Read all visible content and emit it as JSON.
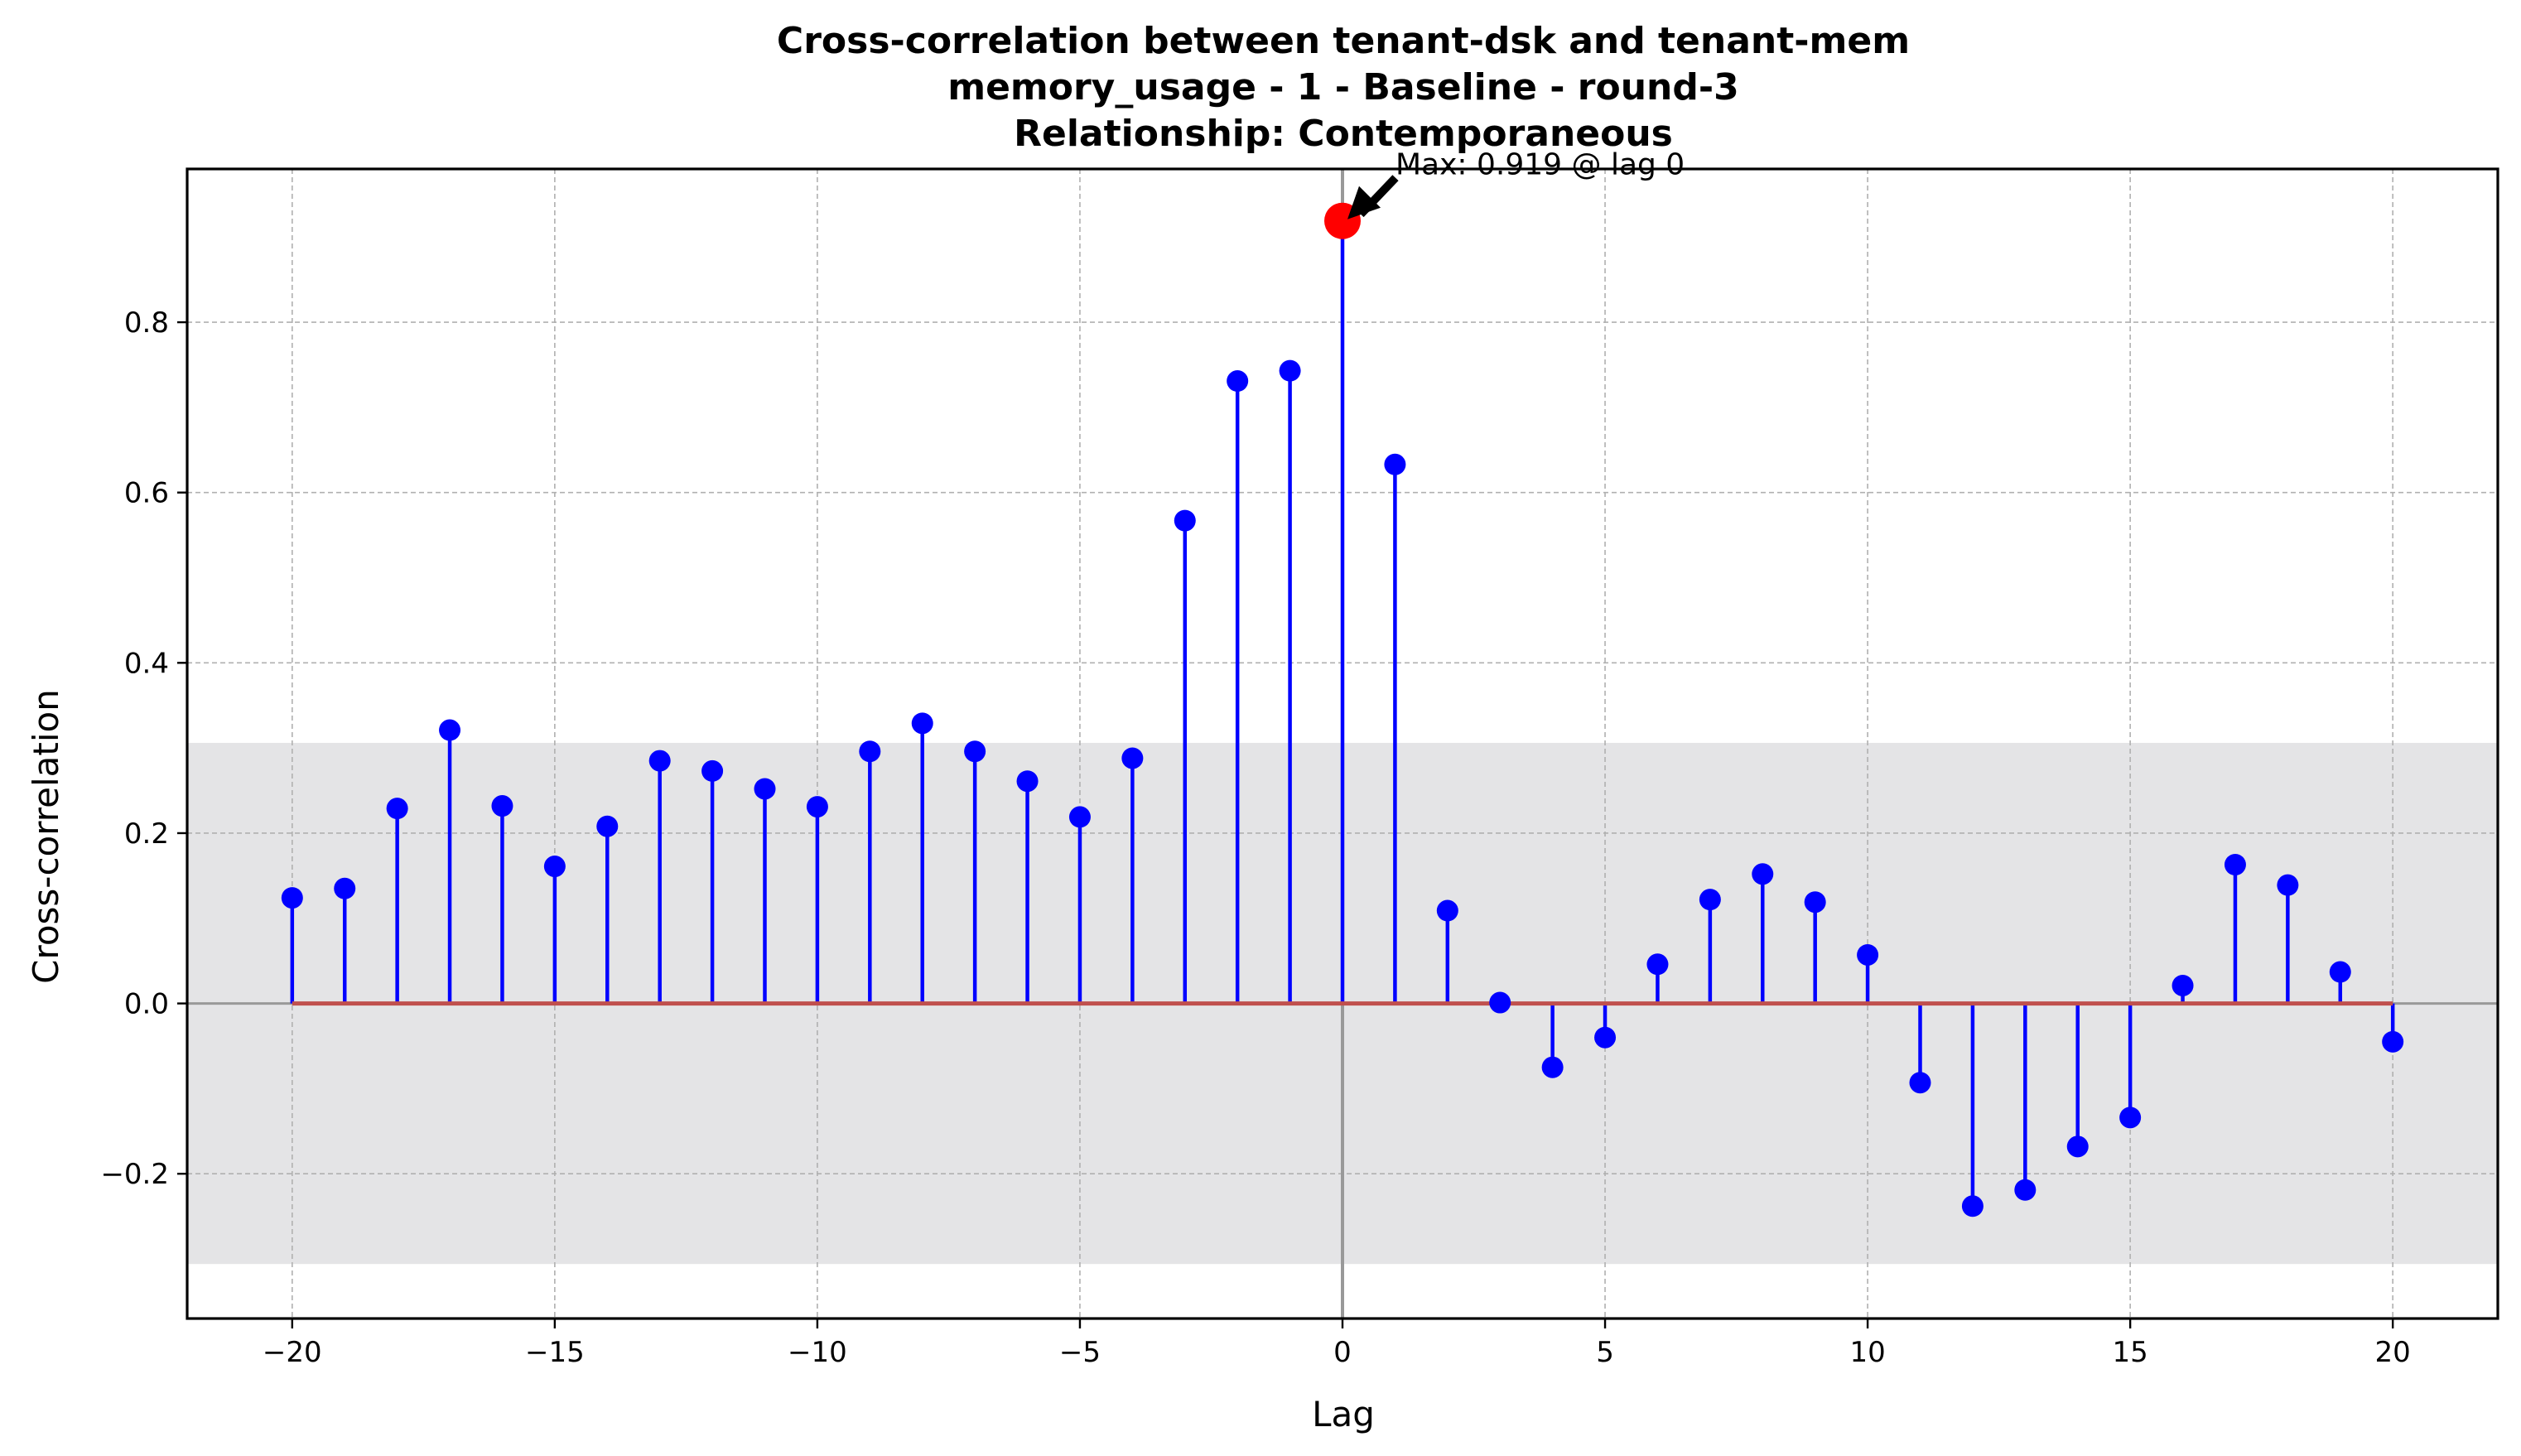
{
  "chart_data": {
    "type": "stem",
    "title_lines": [
      "Cross-correlation between tenant-dsk and tenant-mem",
      "memory_usage - 1 - Baseline - round-3",
      "Relationship: Contemporaneous"
    ],
    "xlabel": "Lag",
    "ylabel": "Cross-correlation",
    "xlim": [
      -22,
      22
    ],
    "ylim": [
      -0.37,
      0.98
    ],
    "xticks": [
      -20,
      -15,
      -10,
      -5,
      0,
      5,
      10,
      15,
      20
    ],
    "yticks": [
      -0.2,
      0.0,
      0.2,
      0.4,
      0.6,
      0.8
    ],
    "grid": true,
    "confidence_band": [
      -0.306,
      0.306
    ],
    "x": [
      -20,
      -19,
      -18,
      -17,
      -16,
      -15,
      -14,
      -13,
      -12,
      -11,
      -10,
      -9,
      -8,
      -7,
      -6,
      -5,
      -4,
      -3,
      -2,
      -1,
      0,
      1,
      2,
      3,
      4,
      5,
      6,
      7,
      8,
      9,
      10,
      11,
      12,
      13,
      14,
      15,
      16,
      17,
      18,
      19,
      20
    ],
    "values": [
      0.124,
      0.135,
      0.229,
      0.321,
      0.232,
      0.161,
      0.208,
      0.285,
      0.273,
      0.252,
      0.231,
      0.296,
      0.329,
      0.296,
      0.261,
      0.219,
      0.288,
      0.567,
      0.731,
      0.743,
      0.919,
      0.633,
      0.109,
      0.001,
      -0.075,
      -0.04,
      0.046,
      0.122,
      0.152,
      0.119,
      0.057,
      -0.093,
      -0.238,
      -0.219,
      -0.168,
      -0.134,
      0.021,
      0.163,
      0.139,
      0.037,
      -0.045
    ],
    "max_point": {
      "lag": 0,
      "value": 0.919
    },
    "annotation": "Max: 0.919 @ lag 0",
    "colors": {
      "stem": "#0000ff",
      "marker": "#0000ff",
      "baseline": "#c0504d",
      "max_marker": "#ff0000",
      "band": "#e4e4e6",
      "grid": "#b0b0b0",
      "zero_lines": "#999999"
    }
  }
}
